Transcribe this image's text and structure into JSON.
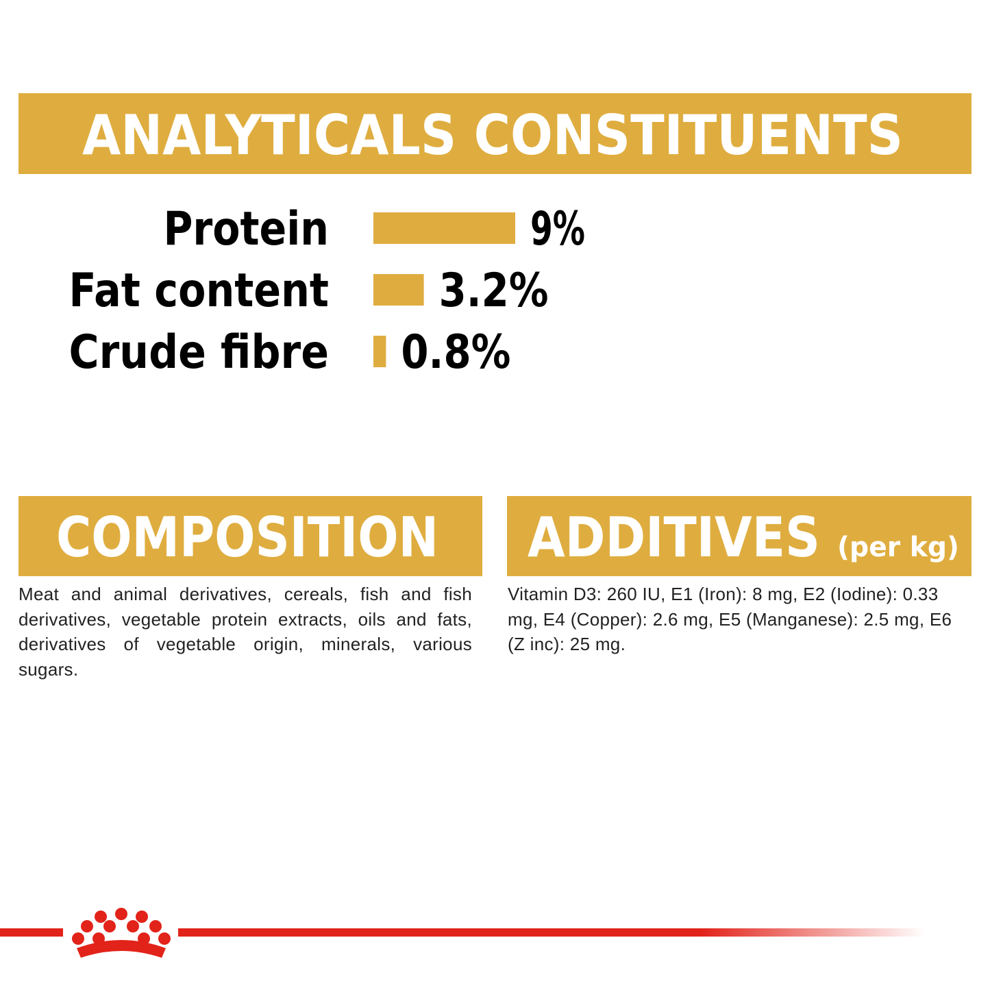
{
  "chart_data": {
    "type": "bar",
    "title": "ANALYTICALS CONSTITUENTS",
    "categories": [
      "Protein",
      "Fat content",
      "Crude fibre"
    ],
    "values": [
      9,
      3.2,
      0.8
    ],
    "value_labels": [
      "9%",
      "3.2%",
      "0.8%"
    ],
    "color": "#dfad3f"
  },
  "composition": {
    "title": "COMPOSITION",
    "text": "Meat and animal derivatives, cereals, fish and fish derivatives, vegetable protein extracts, oils and fats, derivatives of vegetable origin, minerals, various sugars."
  },
  "additives": {
    "title": "ADDITIVES",
    "unit": "(per kg)",
    "text": "Vitamin D3: 260 IU, E1 (Iron): 8 mg, E2 (Iodine): 0.33 mg, E4 (Copper): 2.6 mg, E5 (Manganese): 2.5 mg, E6 (Z inc): 25 mg."
  }
}
